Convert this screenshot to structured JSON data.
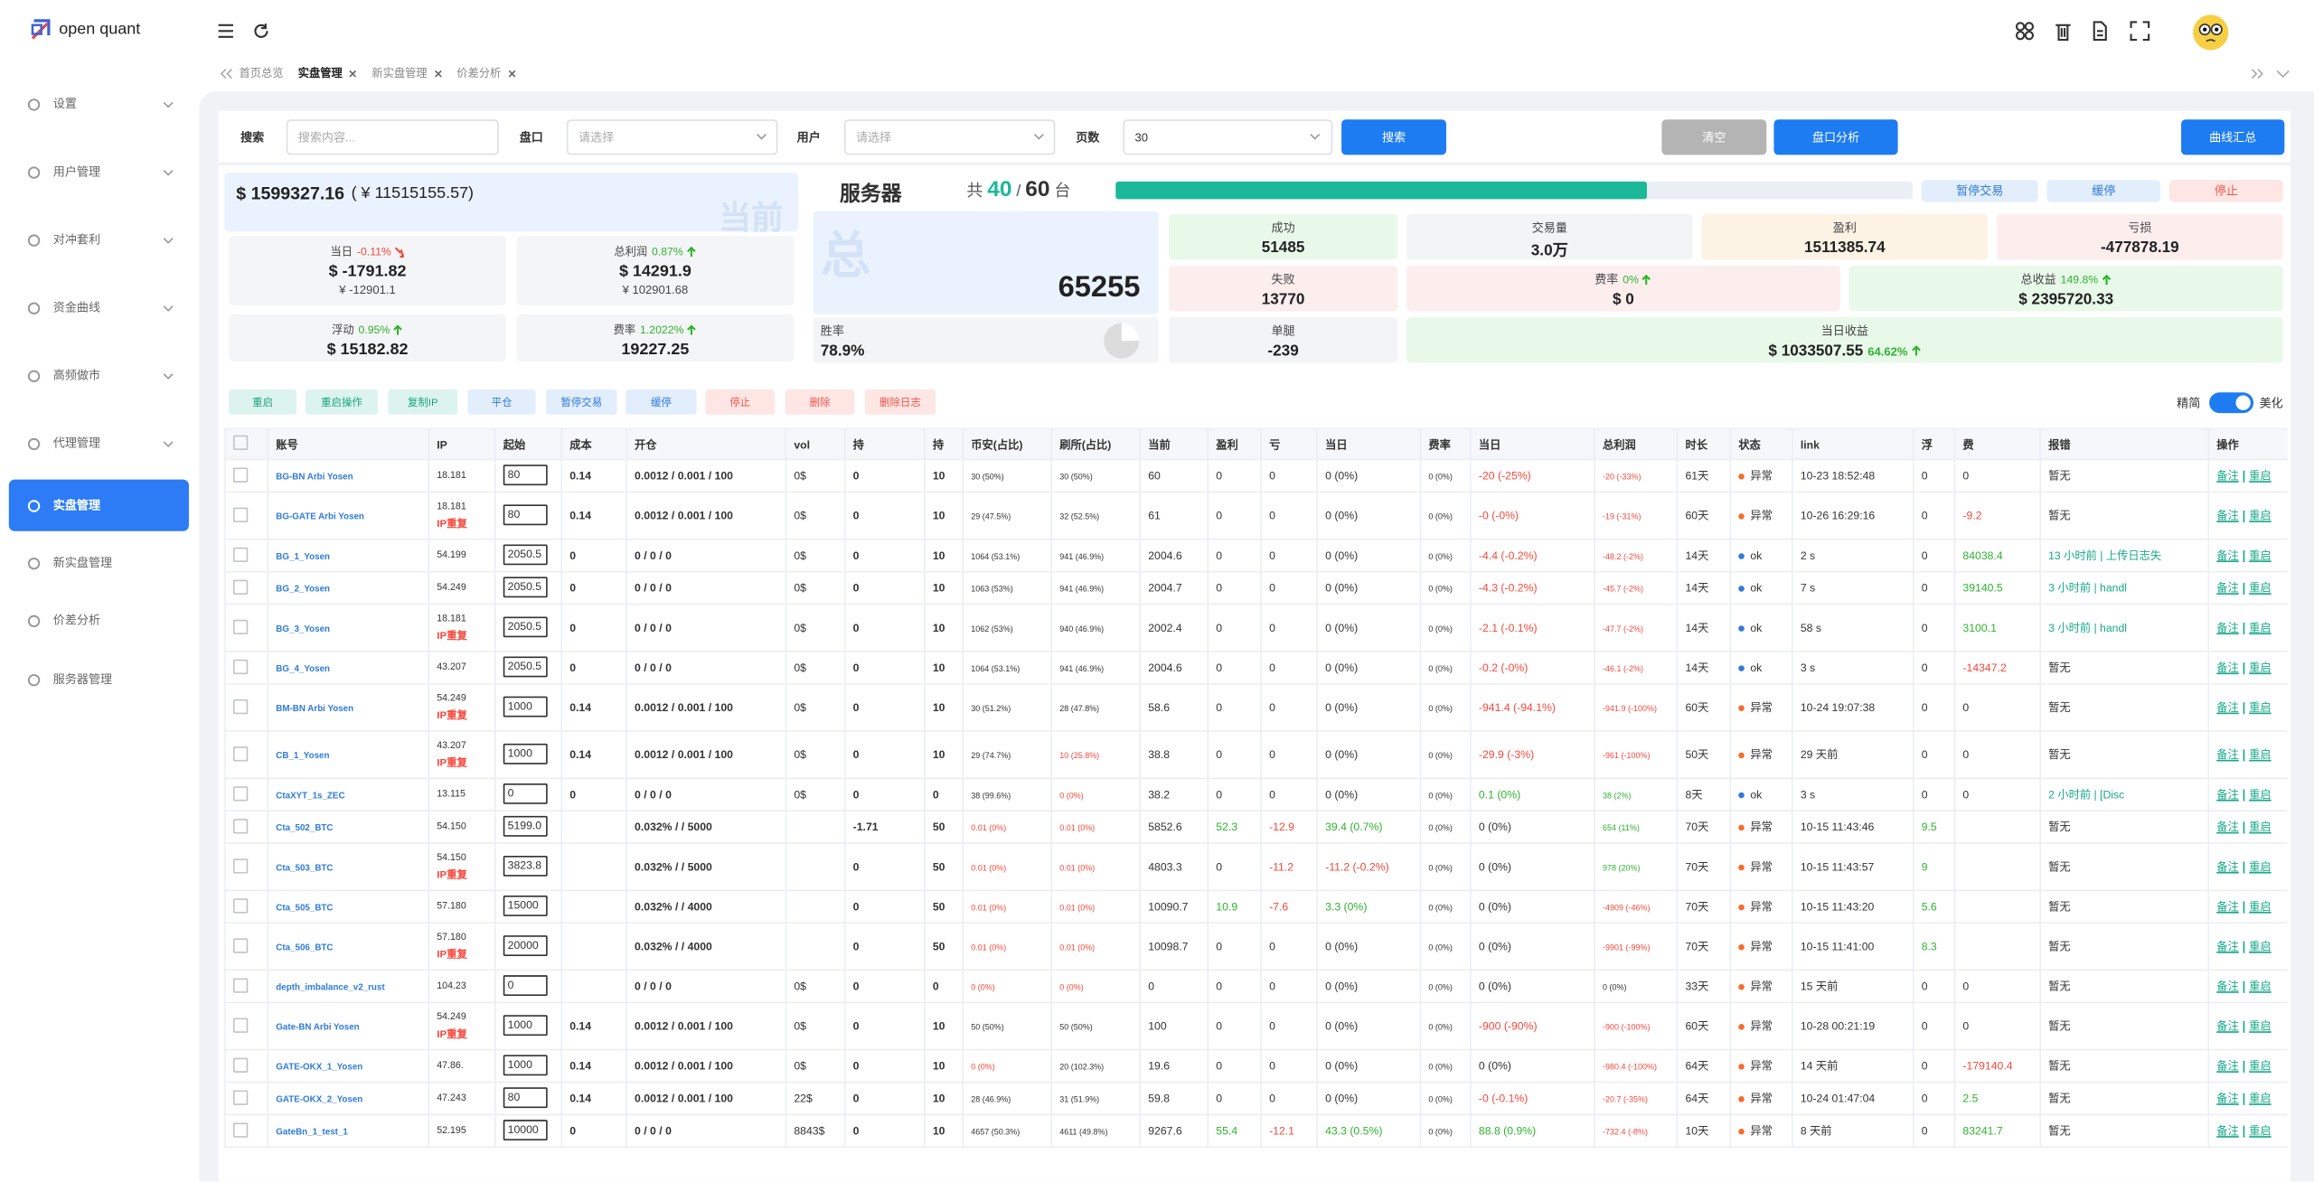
{
  "sidebar": {
    "logo": "open quant",
    "menu": [
      {
        "label": "设置",
        "submenu": true
      },
      {
        "label": "用户管理",
        "submenu": true
      },
      {
        "label": "对冲套利",
        "submenu": true
      },
      {
        "label": "资金曲线",
        "submenu": true
      },
      {
        "label": "高频做市",
        "submenu": true
      },
      {
        "label": "代理管理",
        "submenu": true
      },
      {
        "label": "实盘管理",
        "active": true
      },
      {
        "label": "新实盘管理"
      },
      {
        "label": "价差分析"
      },
      {
        "label": "服务器管理"
      }
    ]
  },
  "tabs": [
    {
      "label": "首页总览"
    },
    {
      "label": "实盘管理",
      "active": true,
      "closable": true
    },
    {
      "label": "新实盘管理",
      "closable": true
    },
    {
      "label": "价差分析",
      "closable": true
    }
  ],
  "search": {
    "label": "搜索",
    "placeholder": "搜索内容...",
    "market_label": "盘口",
    "market_placeholder": "请选择",
    "user_label": "用户",
    "user_placeholder": "请选择",
    "page_label": "页数",
    "page_size": "30",
    "buttons": {
      "search": "搜索",
      "clear": "清空",
      "market_analysis": "盘口分析",
      "curve_summary": "曲线汇总"
    }
  },
  "balance": {
    "usd": "$ 1599327.16",
    "cny": "( ¥ 11515155.57)",
    "watermark": "当前",
    "cards": [
      {
        "label": "当日",
        "change": "-0.11%",
        "trend": "down",
        "usd": "$ -1791.82",
        "cny": "¥ -12901.1"
      },
      {
        "label": "总利润",
        "change": "0.87%",
        "trend": "up",
        "usd": "$ 14291.9",
        "cny": "¥ 102901.68"
      },
      {
        "label": "浮动",
        "change": "0.95%",
        "trend": "up",
        "usd": "$ 15182.82"
      },
      {
        "label": "费率",
        "change": "1.2022%",
        "trend": "up",
        "usd": "19227.25"
      }
    ]
  },
  "server": {
    "title": "服务器",
    "count_prefix": "共",
    "online": 40,
    "separator": "/",
    "total": 60,
    "unit": "台",
    "buttons": [
      {
        "label": "暂停交易",
        "tone": "blue"
      },
      {
        "label": "缓停",
        "tone": "blue"
      },
      {
        "label": "停止",
        "tone": "red"
      }
    ],
    "watermark": "总",
    "total_runs": 65255,
    "stats": [
      {
        "label": "成功",
        "value": "51485",
        "tone": "green"
      },
      {
        "label": "交易量",
        "value": "3.0万",
        "tone": "gray"
      },
      {
        "label": "盈利",
        "value": "1511385.74",
        "tone": "orange"
      },
      {
        "label": "亏损",
        "value": "-477878.19",
        "tone": "red"
      },
      {
        "label": "失败",
        "value": "13770",
        "tone": "red"
      },
      {
        "label": "费率",
        "change": "0%",
        "trend": "up",
        "value": "$ 0",
        "tone": "red"
      },
      {
        "label": "总收益",
        "change": "149.8%",
        "trend": "up",
        "value": "$ 2395720.33",
        "tone": "green"
      },
      {
        "label": "胜率",
        "value": "78.9%",
        "tone": "gray"
      },
      {
        "label": "单腿",
        "value": "-239",
        "tone": "gray"
      },
      {
        "label": "当日收益",
        "change": "64.62%",
        "trend": "up",
        "value": "$ 1033507.55",
        "tone": "green"
      }
    ]
  },
  "actions": {
    "buttons": [
      {
        "label": "重启",
        "tone": "teal"
      },
      {
        "label": "重启操作",
        "tone": "teal"
      },
      {
        "label": "复制IP",
        "tone": "teal"
      },
      {
        "label": "平仓",
        "tone": "blue"
      },
      {
        "label": "暂停交易",
        "tone": "blue"
      },
      {
        "label": "缓停",
        "tone": "blue"
      },
      {
        "label": "停止",
        "tone": "red"
      },
      {
        "label": "删除",
        "tone": "red"
      },
      {
        "label": "删除日志",
        "tone": "red"
      }
    ],
    "toggle_left": "精简",
    "toggle_right": "美化"
  },
  "table": {
    "headers": [
      "账号",
      "IP",
      "起始",
      "成本",
      "开仓",
      "vol",
      "持",
      "持",
      "币安(占比)",
      "刷所(占比)",
      "当前",
      "盈利",
      "亏",
      "当日",
      "费率",
      "当日",
      "总利润",
      "时长",
      "状态",
      "link",
      "浮",
      "费",
      "报错",
      "操作"
    ],
    "row_actions": [
      "备注",
      "重启"
    ],
    "rows": [
      {
        "cells": [
          "BG-BN Arbi Yosen",
          "18.181",
          "80",
          "0.14",
          "0.0012 / 0.001 / 100",
          "0$",
          "0",
          "10",
          "30 (50%)",
          "30 (50%)",
          "60",
          "0",
          "0",
          "0 (0%)",
          "0 (0%)",
          "-20 (-25%)",
          "-20 (-33%)",
          "61天",
          "异常",
          "10-23 18:52:48",
          "0",
          "0",
          "暂无"
        ]
      },
      {
        "cells": [
          "BG-GATE Arbi Yosen",
          "18.181",
          "80",
          "0.14",
          "0.0012 / 0.001 / 100",
          "0$",
          "0",
          "10",
          "29 (47.5%)",
          "32 (52.5%)",
          "61",
          "0",
          "0",
          "0 (0%)",
          "0 (0%)",
          "-0 (-0%)",
          "-19 (-31%)",
          "60天",
          "异常",
          "10-26 16:29:16",
          "0",
          "-9.2",
          "暂无"
        ],
        "ip_note": "IP重复"
      },
      {
        "cells": [
          "BG_1_Yosen",
          "54.199",
          "2050.5",
          "0",
          "0 / 0 / 0",
          "0$",
          "0",
          "10",
          "1064 (53.1%)",
          "941 (46.9%)",
          "2004.6",
          "0",
          "0",
          "0 (0%)",
          "0 (0%)",
          "-4.4 (-0.2%)",
          "-48.2 (-2%)",
          "14天",
          "ok",
          "2 s",
          "0",
          "84038.4",
          "13 小时前 | 上传日志失"
        ]
      },
      {
        "cells": [
          "BG_2_Yosen",
          "54.249",
          "2050.5",
          "0",
          "0 / 0 / 0",
          "0$",
          "0",
          "10",
          "1063 (53%)",
          "941 (46.9%)",
          "2004.7",
          "0",
          "0",
          "0 (0%)",
          "0 (0%)",
          "-4.3 (-0.2%)",
          "-45.7 (-2%)",
          "14天",
          "ok",
          "7 s",
          "0",
          "39140.5",
          "3 小时前 | handl"
        ]
      },
      {
        "cells": [
          "BG_3_Yosen",
          "18.181",
          "2050.5",
          "0",
          "0 / 0 / 0",
          "0$",
          "0",
          "10",
          "1062 (53%)",
          "940 (46.9%)",
          "2002.4",
          "0",
          "0",
          "0 (0%)",
          "0 (0%)",
          "-2.1 (-0.1%)",
          "-47.7 (-2%)",
          "14天",
          "ok",
          "58 s",
          "0",
          "3100.1",
          "3 小时前 | handl"
        ],
        "ip_note": "IP重复"
      },
      {
        "cells": [
          "BG_4_Yosen",
          "43.207",
          "2050.5",
          "0",
          "0 / 0 / 0",
          "0$",
          "0",
          "10",
          "1064 (53.1%)",
          "941 (46.9%)",
          "2004.6",
          "0",
          "0",
          "0 (0%)",
          "0 (0%)",
          "-0.2 (-0%)",
          "-46.1 (-2%)",
          "14天",
          "ok",
          "3 s",
          "0",
          "-14347.2",
          "暂无"
        ]
      },
      {
        "cells": [
          "BM-BN Arbi Yosen",
          "54.249",
          "1000",
          "0.14",
          "0.0012 / 0.001 / 100",
          "0$",
          "0",
          "10",
          "30 (51.2%)",
          "28 (47.8%)",
          "58.6",
          "0",
          "0",
          "0 (0%)",
          "0 (0%)",
          "-941.4 (-94.1%)",
          "-941.9 (-100%)",
          "60天",
          "异常",
          "10-24 19:07:38",
          "0",
          "0",
          "暂无"
        ],
        "ip_note": "IP重复"
      },
      {
        "cells": [
          "CB_1_Yosen",
          "43.207",
          "1000",
          "0.14",
          "0.0012 / 0.001 / 100",
          "0$",
          "0",
          "10",
          "29 (74.7%)",
          "10 (25.8%)",
          "38.8",
          "0",
          "0",
          "0 (0%)",
          "0 (0%)",
          "-29.9 (-3%)",
          "-961 (-100%)",
          "50天",
          "异常",
          "29 天前",
          "0",
          "0",
          "暂无"
        ],
        "ip_note": "IP重复"
      },
      {
        "cells": [
          "CtaXYT_1s_ZEC",
          "13.115",
          "0",
          "0",
          "0 / 0 / 0",
          "0$",
          "0",
          "0",
          "38 (99.6%)",
          "0 (0%)",
          "38.2",
          "0",
          "0",
          "0 (0%)",
          "0 (0%)",
          "0.1 (0%)",
          "38 (2%)",
          "8天",
          "ok",
          "3 s",
          "0",
          "0",
          "2 小时前 | [Disc"
        ]
      },
      {
        "cells": [
          "Cta_502_BTC",
          "54.150",
          "5199.0",
          null,
          "0.032% / / 5000",
          null,
          "-1.71",
          "50",
          "0.01 (0%)",
          "0.01 (0%)",
          "5852.6",
          "52.3",
          "-12.9",
          "39.4 (0.7%)",
          "0 (0%)",
          "0 (0%)",
          "654 (11%)",
          "70天",
          "异常",
          "10-15 11:43:46",
          "9.5",
          null,
          "暂无"
        ]
      },
      {
        "cells": [
          "Cta_503_BTC",
          "54.150",
          "3823.8",
          null,
          "0.032% / / 5000",
          null,
          "0",
          "50",
          "0.01 (0%)",
          "0.01 (0%)",
          "4803.3",
          "0",
          "-11.2",
          "-11.2 (-0.2%)",
          "0 (0%)",
          "0 (0%)",
          "978 (20%)",
          "70天",
          "异常",
          "10-15 11:43:57",
          "9",
          null,
          "暂无"
        ],
        "ip_note": "IP重复"
      },
      {
        "cells": [
          "Cta_505_BTC",
          "57.180",
          "15000",
          null,
          "0.032% / / 4000",
          null,
          "0",
          "50",
          "0.01 (0%)",
          "0.01 (0%)",
          "10090.7",
          "10.9",
          "-7.6",
          "3.3 (0%)",
          "0 (0%)",
          "0 (0%)",
          "-4909 (-46%)",
          "70天",
          "异常",
          "10-15 11:43:20",
          "5.6",
          null,
          "暂无"
        ]
      },
      {
        "cells": [
          "Cta_506_BTC",
          "57.180",
          "20000",
          null,
          "0.032% / / 4000",
          null,
          "0",
          "50",
          "0.01 (0%)",
          "0.01 (0%)",
          "10098.7",
          "0",
          "0",
          "0 (0%)",
          "0 (0%)",
          "0 (0%)",
          "-9901 (-99%)",
          "70天",
          "异常",
          "10-15 11:41:00",
          "8.3",
          null,
          "暂无"
        ],
        "ip_note": "IP重复"
      },
      {
        "cells": [
          "depth_imbalance_v2_rust",
          "104.23",
          "0",
          null,
          "0 / 0 / 0",
          "0$",
          "0",
          "0",
          "0 (0%)",
          "0 (0%)",
          "0",
          "0",
          "0",
          "0 (0%)",
          "0 (0%)",
          "0 (0%)",
          "0 (0%)",
          "33天",
          "异常",
          "15 天前",
          "0",
          "0",
          "暂无"
        ]
      },
      {
        "cells": [
          "Gate-BN Arbi Yosen",
          "54.249",
          "1000",
          "0.14",
          "0.0012 / 0.001 / 100",
          "0$",
          "0",
          "10",
          "50 (50%)",
          "50 (50%)",
          "100",
          "0",
          "0",
          "0 (0%)",
          "0 (0%)",
          "-900 (-90%)",
          "-900 (-100%)",
          "60天",
          "异常",
          "10-28 00:21:19",
          "0",
          "0",
          "暂无"
        ],
        "ip_note": "IP重复"
      },
      {
        "cells": [
          "GATE-OKX_1_Yosen",
          "47.86.",
          "1000",
          "0.14",
          "0.0012 / 0.001 / 100",
          "0$",
          "0",
          "10",
          "0 (0%)",
          "20 (102.3%)",
          "19.6",
          "0",
          "0",
          "0 (0%)",
          "0 (0%)",
          "0 (0%)",
          "-980.4 (-100%)",
          "64天",
          "异常",
          "14 天前",
          "0",
          "-179140.4",
          "暂无"
        ]
      },
      {
        "cells": [
          "GATE-OKX_2_Yosen",
          "47.243",
          "80",
          "0.14",
          "0.0012 / 0.001 / 100",
          "22$",
          "0",
          "10",
          "28 (46.9%)",
          "31 (51.9%)",
          "59.8",
          "0",
          "0",
          "0 (0%)",
          "0 (0%)",
          "-0 (-0.1%)",
          "-20.7 (-35%)",
          "64天",
          "异常",
          "10-24 01:47:04",
          "0",
          "2.5",
          "暂无"
        ]
      },
      {
        "cells": [
          "GateBn_1_test_1",
          "52.195",
          "10000",
          "0",
          "0 / 0 / 0",
          "8843$",
          "0",
          "10",
          "4657 (50.3%)",
          "4611 (49.8%)",
          "9267.6",
          "55.4",
          "-12.1",
          "43.3 (0.5%)",
          "0 (0%)",
          "88.8 (0.9%)",
          "-732.4 (-8%)",
          "10天",
          "异常",
          "8 天前",
          "0",
          "83241.7",
          "暂无"
        ]
      }
    ]
  }
}
